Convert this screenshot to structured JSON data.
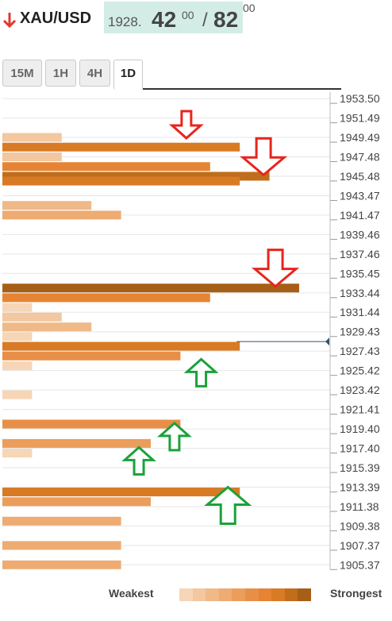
{
  "header": {
    "symbol": "XAU/USD",
    "bid_prefix": "1928.",
    "bid_big": "42",
    "bid_sup": "00",
    "separator": "/",
    "ask_big": "82",
    "ask_sup": "00",
    "down_color": "#e03a2f",
    "quote_bg": "#d3ede6"
  },
  "tabs": [
    {
      "label": "15M",
      "active": false
    },
    {
      "label": "1H",
      "active": false
    },
    {
      "label": "4H",
      "active": false
    },
    {
      "label": "1D",
      "active": true
    }
  ],
  "chart_data": {
    "type": "bar",
    "orientation": "horizontal",
    "y_labels": [
      "1953.50",
      "1951.49",
      "1949.49",
      "1947.48",
      "1945.48",
      "1943.47",
      "1941.47",
      "1939.46",
      "1937.46",
      "1935.45",
      "1933.44",
      "1931.44",
      "1929.43",
      "1927.43",
      "1925.42",
      "1923.42",
      "1921.41",
      "1919.40",
      "1917.40",
      "1915.39",
      "1913.39",
      "1911.38",
      "1909.38",
      "1907.37",
      "1905.37"
    ],
    "ylim": [
      1904.9,
      1954.0
    ],
    "current_price": 1928.42,
    "max_strength": 10,
    "levels": [
      {
        "price": 1949.49,
        "strength": 2
      },
      {
        "price": 1948.49,
        "strength": 8
      },
      {
        "price": 1947.48,
        "strength": 2
      },
      {
        "price": 1946.48,
        "strength": 7
      },
      {
        "price": 1945.48,
        "strength": 9
      },
      {
        "price": 1944.98,
        "strength": 8
      },
      {
        "price": 1942.47,
        "strength": 3
      },
      {
        "price": 1941.47,
        "strength": 4
      },
      {
        "price": 1933.94,
        "strength": 10
      },
      {
        "price": 1932.94,
        "strength": 7
      },
      {
        "price": 1931.94,
        "strength": 1
      },
      {
        "price": 1930.94,
        "strength": 2
      },
      {
        "price": 1929.93,
        "strength": 3
      },
      {
        "price": 1928.93,
        "strength": 1
      },
      {
        "price": 1927.93,
        "strength": 8
      },
      {
        "price": 1926.93,
        "strength": 6
      },
      {
        "price": 1925.92,
        "strength": 1
      },
      {
        "price": 1922.92,
        "strength": 1
      },
      {
        "price": 1919.9,
        "strength": 6
      },
      {
        "price": 1917.9,
        "strength": 5
      },
      {
        "price": 1916.9,
        "strength": 1
      },
      {
        "price": 1912.89,
        "strength": 8
      },
      {
        "price": 1911.89,
        "strength": 5
      },
      {
        "price": 1909.88,
        "strength": 4
      },
      {
        "price": 1907.37,
        "strength": 4
      },
      {
        "price": 1905.37,
        "strength": 4
      }
    ],
    "arrows": [
      {
        "direction": "down",
        "price": 1950.8,
        "strength": 6.2,
        "size": "small"
      },
      {
        "direction": "down",
        "price": 1947.5,
        "strength": 8.8,
        "size": "large"
      },
      {
        "direction": "down",
        "price": 1936.0,
        "strength": 9.2,
        "size": "large"
      },
      {
        "direction": "up",
        "price": 1925.2,
        "strength": 6.7,
        "size": "small"
      },
      {
        "direction": "up",
        "price": 1918.6,
        "strength": 5.8,
        "size": "small"
      },
      {
        "direction": "up",
        "price": 1916.1,
        "strength": 4.6,
        "size": "small"
      },
      {
        "direction": "up",
        "price": 1911.5,
        "strength": 7.6,
        "size": "large"
      }
    ],
    "colors": {
      "down_arrow": "#e8241c",
      "up_arrow": "#1aa23a",
      "price_line": "#33506e",
      "ramp": [
        "#f6d6b6",
        "#f3c79f",
        "#f0b988",
        "#eeab72",
        "#eb9d5c",
        "#e88f47",
        "#e68433",
        "#d97a25",
        "#c06d1c",
        "#a65f16"
      ]
    },
    "legend": {
      "weakest": "Weakest",
      "strongest": "Strongest"
    }
  }
}
